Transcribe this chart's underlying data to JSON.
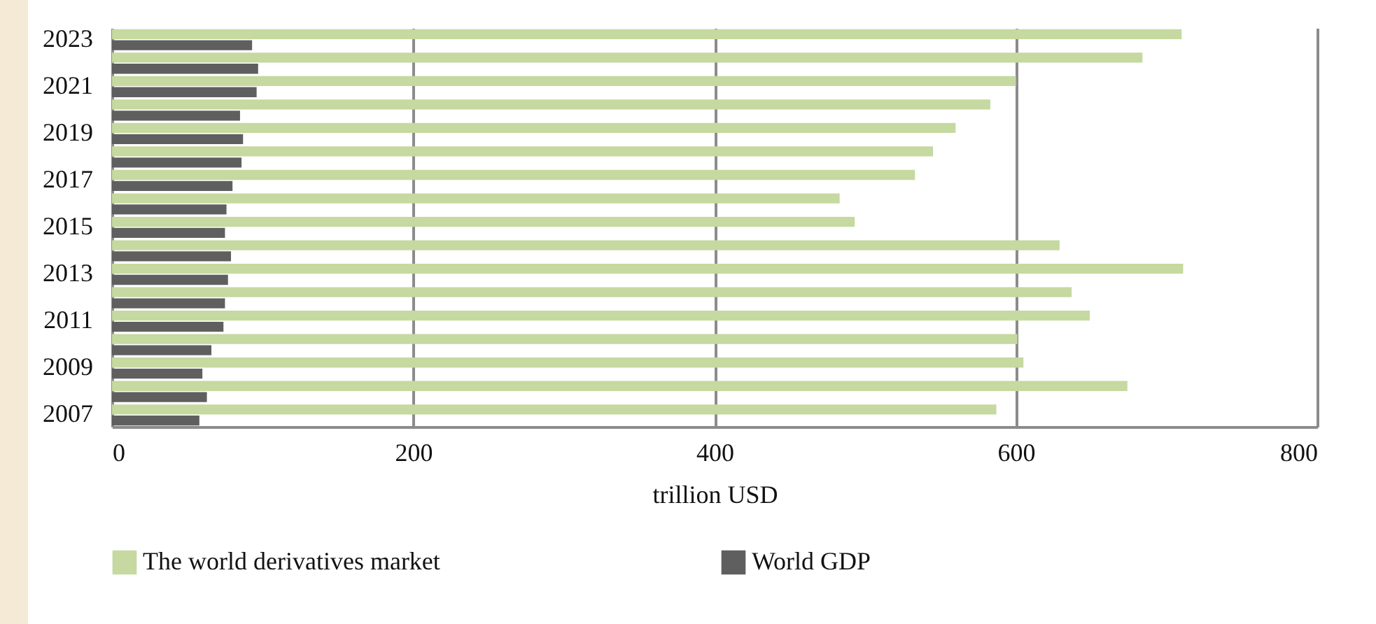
{
  "chart_data": {
    "type": "bar",
    "orientation": "horizontal",
    "xlabel": "trillion USD",
    "categories": [
      "2023",
      null,
      "2021",
      null,
      "2019",
      null,
      "2017",
      null,
      "2015",
      null,
      "2013",
      null,
      "2011",
      null,
      "2009",
      null,
      "2007"
    ],
    "series": [
      {
        "name": "The world derivatives market",
        "color": "#c5d9a0",
        "values": [
          710,
          684,
          600,
          583,
          560,
          545,
          533,
          483,
          493,
          629,
          711,
          637,
          649,
          601,
          605,
          674,
          587
        ]
      },
      {
        "name": "World GDP",
        "color": "#5f5f5f",
        "values": [
          93,
          97,
          96,
          85,
          87,
          86,
          80,
          76,
          75,
          79,
          77,
          75,
          74,
          66,
          60,
          63,
          58
        ]
      }
    ],
    "xlim": [
      0,
      800
    ],
    "xticks": [
      0,
      200,
      400,
      600,
      800
    ],
    "grid": "x",
    "legend": "bottom"
  }
}
